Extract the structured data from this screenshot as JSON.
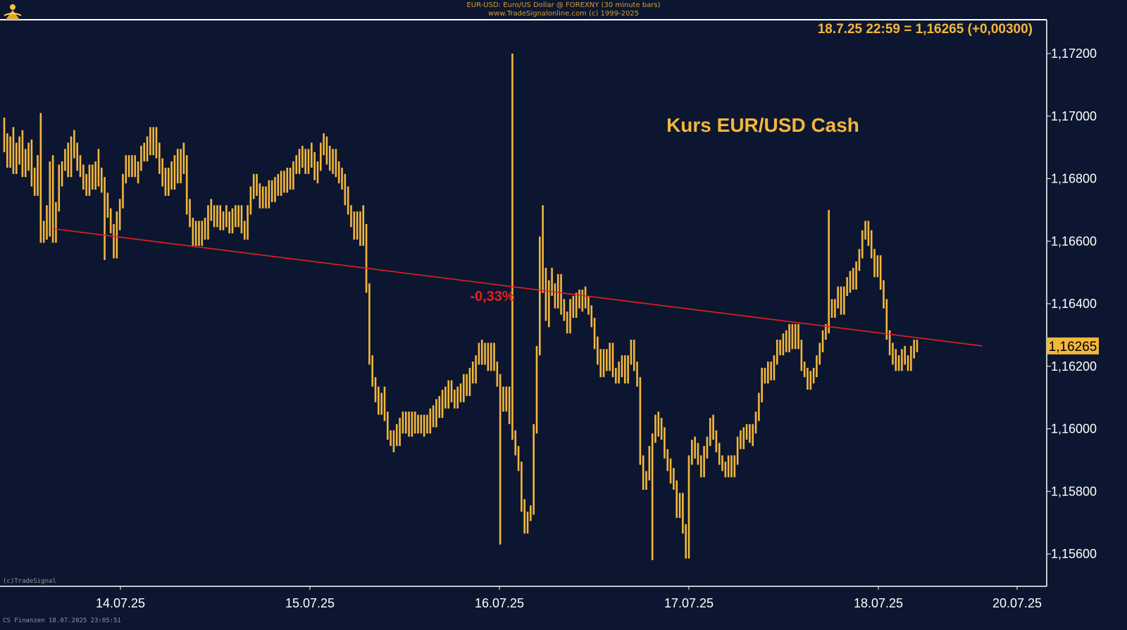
{
  "header": {
    "title": "EUR-USD: Euro/US Dollar @ FOREXNY (30 minute bars)",
    "subtitle": "www.TradeSignalonline.com (c) 1999-2025"
  },
  "footer": {
    "left_top": "(c)TradeSignal",
    "left_bottom": "CS Finanzen  18.07.2025 23:05:51"
  },
  "chart_data": {
    "type": "ohlc-bar",
    "title": "Kurs EUR/USD Cash",
    "last_quote": "18.7.25 22:59 = 1,16265 (+0,00300)",
    "current_price_label": "1,16265",
    "trendline_label": "-0,33%",
    "ylim": [
      1.155,
      1.173
    ],
    "yticks": [
      "1,17200",
      "1,17000",
      "1,16800",
      "1,16600",
      "1,16400",
      "1,16200",
      "1,16000",
      "1,15800",
      "1,15600"
    ],
    "ytick_values": [
      1.172,
      1.17,
      1.168,
      1.166,
      1.164,
      1.162,
      1.16,
      1.158,
      1.156
    ],
    "xticks": [
      "14.07.25",
      "15.07.25",
      "16.07.25",
      "17.07.25",
      "18.07.25",
      "20.07.25"
    ],
    "trendline": {
      "start": {
        "bar": 16,
        "price": 1.1664
      },
      "end": {
        "bar": 320,
        "price": 1.16265
      },
      "change": "-0,33%"
    },
    "colors": {
      "background": "#0d1630",
      "bars": "#f3b73a",
      "trendline": "#e52020",
      "axis": "#ffffff",
      "label_red": "#e52020"
    },
    "bars": [
      [
        1.1698,
        1.169
      ],
      [
        1.1693,
        1.1685
      ],
      [
        1.1688,
        1.1692
      ],
      [
        1.1695,
        1.1683
      ],
      [
        1.169,
        1.1686
      ],
      [
        1.1688,
        1.1692
      ],
      [
        1.1694,
        1.1682
      ],
      [
        1.1688,
        1.1684
      ],
      [
        1.1686,
        1.169
      ],
      [
        1.1691,
        1.1679
      ],
      [
        1.1682,
        1.1676
      ],
      [
        1.1678,
        1.1686
      ],
      [
        1.17,
        1.1661
      ],
      [
        1.1665,
        1.1662
      ],
      [
        1.167,
        1.1663
      ],
      [
        1.1665,
        1.1684
      ],
      [
        1.1686,
        1.1661
      ],
      [
        1.1664,
        1.1671
      ],
      [
        1.1675,
        1.1683
      ],
      [
        1.1679,
        1.1684
      ],
      [
        1.1684,
        1.1688
      ],
      [
        1.169,
        1.1682
      ],
      [
        1.1686,
        1.1692
      ],
      [
        1.1694,
        1.1688
      ],
      [
        1.169,
        1.1684
      ],
      [
        1.1686,
        1.1682
      ],
      [
        1.1683,
        1.1678
      ],
      [
        1.168,
        1.1676
      ],
      [
        1.1678,
        1.1683
      ],
      [
        1.1682,
        1.1678
      ],
      [
        1.168,
        1.1684
      ],
      [
        1.1688,
        1.1679
      ],
      [
        1.1682,
        1.1677
      ],
      [
        1.1679,
        1.1674
      ],
      [
        1.1672,
        1.1669
      ],
      [
        1.1668,
        1.1664
      ],
      [
        1.1662,
        1.1656
      ],
      [
        1.1658,
        1.1668
      ],
      [
        1.1665,
        1.1672
      ],
      [
        1.1675,
        1.168
      ],
      [
        1.1683,
        1.1686
      ],
      [
        1.1686,
        1.1682
      ],
      [
        1.1683,
        1.1686
      ],
      [
        1.1686,
        1.1682
      ],
      [
        1.168,
        1.1684
      ],
      [
        1.1686,
        1.1689
      ],
      [
        1.169,
        1.1687
      ],
      [
        1.1688,
        1.1692
      ],
      [
        1.1695,
        1.1689
      ],
      [
        1.169,
        1.1695
      ],
      [
        1.1694,
        1.1688
      ],
      [
        1.169,
        1.1683
      ],
      [
        1.1685,
        1.1679
      ],
      [
        1.1682,
        1.1676
      ],
      [
        1.1678,
        1.1682
      ],
      [
        1.1684,
        1.1678
      ],
      [
        1.1682,
        1.1686
      ],
      [
        1.1688,
        1.168
      ],
      [
        1.1684,
        1.1688
      ],
      [
        1.169,
        1.1683
      ],
      [
        1.1686,
        1.167
      ],
      [
        1.1672,
        1.1666
      ],
      [
        1.1666,
        1.166
      ],
      [
        1.1662,
        1.1665
      ],
      [
        1.1664,
        1.166
      ],
      [
        1.1661,
        1.1665
      ],
      [
        1.1666,
        1.1662
      ],
      [
        1.1664,
        1.167
      ],
      [
        1.1672,
        1.1668
      ],
      [
        1.167,
        1.1666
      ],
      [
        1.1667,
        1.167
      ],
      [
        1.1669,
        1.1665
      ],
      [
        1.1666,
        1.1668
      ],
      [
        1.167,
        1.1666
      ],
      [
        1.1668,
        1.1664
      ],
      [
        1.1665,
        1.1669
      ],
      [
        1.167,
        1.1666
      ],
      [
        1.1667,
        1.167
      ],
      [
        1.1668,
        1.1664
      ],
      [
        1.1665,
        1.1662
      ],
      [
        1.1665,
        1.167
      ],
      [
        1.1672,
        1.1676
      ],
      [
        1.1675,
        1.168
      ],
      [
        1.168,
        1.1676
      ],
      [
        1.1677,
        1.1672
      ],
      [
        1.1672,
        1.1676
      ],
      [
        1.1676,
        1.1672
      ],
      [
        1.1674,
        1.1678
      ],
      [
        1.1678,
        1.1674
      ],
      [
        1.1675,
        1.1679
      ],
      [
        1.168,
        1.1676
      ],
      [
        1.1677,
        1.1681
      ],
      [
        1.1681,
        1.1677
      ],
      [
        1.1678,
        1.1682
      ],
      [
        1.1682,
        1.1678
      ],
      [
        1.168,
        1.1684
      ],
      [
        1.1686,
        1.1683
      ],
      [
        1.1684,
        1.1688
      ],
      [
        1.1689,
        1.1685
      ],
      [
        1.1688,
        1.1683
      ],
      [
        1.1684,
        1.1688
      ],
      [
        1.169,
        1.1685
      ],
      [
        1.1687,
        1.1681
      ],
      [
        1.168,
        1.1684
      ],
      [
        1.1688,
        1.169
      ],
      [
        1.1693,
        1.1689
      ],
      [
        1.1692,
        1.1686
      ],
      [
        1.1689,
        1.1684
      ],
      [
        1.1688,
        1.1683
      ],
      [
        1.1688,
        1.1682
      ],
      [
        1.1684,
        1.168
      ],
      [
        1.1682,
        1.1678
      ],
      [
        1.168,
        1.1673
      ],
      [
        1.1676,
        1.167
      ],
      [
        1.167,
        1.1666
      ],
      [
        1.1668,
        1.1662
      ],
      [
        1.1664,
        1.1668
      ],
      [
        1.1664,
        1.166
      ],
      [
        1.167,
        1.1664
      ],
      [
        1.166,
        1.1645
      ],
      [
        1.1643,
        1.1622
      ],
      [
        1.1622,
        1.1615
      ],
      [
        1.1615,
        1.161
      ],
      [
        1.1612,
        1.1606
      ],
      [
        1.1606,
        1.161
      ],
      [
        1.1612,
        1.1604
      ],
      [
        1.1604,
        1.1598
      ],
      [
        1.1598,
        1.1596
      ],
      [
        1.1594,
        1.1598
      ],
      [
        1.16,
        1.1596
      ],
      [
        1.1598,
        1.1602
      ],
      [
        1.1604,
        1.16
      ],
      [
        1.16,
        1.1604
      ],
      [
        1.1602,
        1.1599
      ],
      [
        1.16,
        1.1604
      ],
      [
        1.1604,
        1.16
      ],
      [
        1.16,
        1.1603
      ],
      [
        1.1603,
        1.16
      ],
      [
        1.1599,
        1.1603
      ],
      [
        1.1603,
        1.16
      ],
      [
        1.1601,
        1.1605
      ],
      [
        1.1606,
        1.1602
      ],
      [
        1.1604,
        1.1608
      ],
      [
        1.1609,
        1.1605
      ],
      [
        1.1607,
        1.1611
      ],
      [
        1.1612,
        1.1608
      ],
      [
        1.161,
        1.1614
      ],
      [
        1.1614,
        1.161
      ],
      [
        1.1611,
        1.1608
      ],
      [
        1.1609,
        1.1612
      ],
      [
        1.1613,
        1.161
      ],
      [
        1.1611,
        1.1616
      ],
      [
        1.1616,
        1.1612
      ],
      [
        1.1614,
        1.1618
      ],
      [
        1.162,
        1.1616
      ],
      [
        1.1618,
        1.1622
      ],
      [
        1.1622,
        1.1626
      ],
      [
        1.1627,
        1.1622
      ],
      [
        1.1623,
        1.1626
      ],
      [
        1.1626,
        1.162
      ],
      [
        1.1622,
        1.1626
      ],
      [
        1.1625,
        1.162
      ],
      [
        1.162,
        1.1615
      ],
      [
        1.1616,
        1.1612
      ],
      [
        1.1612,
        1.1607
      ],
      [
        1.1608,
        1.1612
      ],
      [
        1.161,
        1.1603
      ],
      [
        1.1604,
        1.1598
      ],
      [
        1.1596,
        1.1593
      ],
      [
        1.1592,
        1.1588
      ],
      [
        1.1585,
        1.1575
      ],
      [
        1.1576,
        1.1568
      ],
      [
        1.1568,
        1.1572
      ],
      [
        1.1572,
        1.1574
      ],
      [
        1.158,
        1.16
      ],
      [
        1.161,
        1.1625
      ],
      [
        1.164,
        1.166
      ],
      [
        1.167,
        1.1645
      ],
      [
        1.165,
        1.1636
      ],
      [
        1.1634,
        1.1646
      ],
      [
        1.165,
        1.1644
      ],
      [
        1.1645,
        1.164
      ],
      [
        1.1642,
        1.1648
      ],
      [
        1.1644,
        1.1638
      ],
      [
        1.164,
        1.1636
      ],
      [
        1.1636,
        1.1632
      ],
      [
        1.1634,
        1.164
      ],
      [
        1.1641,
        1.1637
      ],
      [
        1.1638,
        1.1642
      ],
      [
        1.1643,
        1.164
      ],
      [
        1.1639,
        1.1643
      ],
      [
        1.1644,
        1.164
      ],
      [
        1.1641,
        1.1638
      ],
      [
        1.1638,
        1.1634
      ],
      [
        1.1634,
        1.1627
      ],
      [
        1.1628,
        1.1622
      ],
      [
        1.1624,
        1.1618
      ],
      [
        1.1618,
        1.1624
      ],
      [
        1.1624,
        1.162
      ],
      [
        1.162,
        1.1626
      ],
      [
        1.1626,
        1.1618
      ],
      [
        1.1617,
        1.1616
      ],
      [
        1.1618,
        1.162
      ],
      [
        1.1618,
        1.1622
      ],
      [
        1.1622,
        1.1616
      ],
      [
        1.162,
        1.1622
      ],
      [
        1.1624,
        1.1627
      ],
      [
        1.1627,
        1.162
      ],
      [
        1.162,
        1.1615
      ],
      [
        1.1614,
        1.159
      ],
      [
        1.1588,
        1.1582
      ],
      [
        1.1582,
        1.1585
      ],
      [
        1.1588,
        1.1593
      ],
      [
        1.1592,
        1.1597
      ],
      [
        1.1599,
        1.1603
      ],
      [
        1.1604,
        1.1599
      ],
      [
        1.1602,
        1.1598
      ],
      [
        1.1599,
        1.1592
      ],
      [
        1.159,
        1.1588
      ],
      [
        1.1589,
        1.1584
      ],
      [
        1.1586,
        1.1582
      ],
      [
        1.158,
        1.1573
      ],
      [
        1.1574,
        1.1578
      ],
      [
        1.1574,
        1.1568
      ],
      [
        1.1566,
        1.156
      ],
      [
        1.158,
        1.159
      ],
      [
        1.159,
        1.1595
      ],
      [
        1.1596,
        1.1592
      ],
      [
        1.1594,
        1.159
      ],
      [
        1.159,
        1.1586
      ],
      [
        1.1587,
        1.1593
      ],
      [
        1.1592,
        1.1596
      ],
      [
        1.1598,
        1.1602
      ],
      [
        1.1603,
        1.1598
      ],
      [
        1.1598,
        1.1594
      ],
      [
        1.1594,
        1.159
      ],
      [
        1.159,
        1.1588
      ],
      [
        1.1588,
        1.1586
      ],
      [
        1.1586,
        1.159
      ],
      [
        1.159,
        1.1586
      ],
      [
        1.1586,
        1.159
      ],
      [
        1.1592,
        1.1596
      ],
      [
        1.1598,
        1.1595
      ],
      [
        1.1596,
        1.1599
      ],
      [
        1.1598,
        1.16
      ],
      [
        1.1599,
        1.1597
      ],
      [
        1.1596,
        1.16
      ],
      [
        1.16,
        1.1604
      ],
      [
        1.1604,
        1.161
      ],
      [
        1.161,
        1.1618
      ],
      [
        1.1618,
        1.1616
      ],
      [
        1.1616,
        1.162
      ],
      [
        1.162,
        1.1617
      ],
      [
        1.1618,
        1.1622
      ],
      [
        1.1622,
        1.1627
      ],
      [
        1.1627,
        1.1625
      ],
      [
        1.1625,
        1.1629
      ],
      [
        1.163,
        1.1626
      ],
      [
        1.1628,
        1.1632
      ],
      [
        1.1632,
        1.1627
      ],
      [
        1.1628,
        1.1632
      ],
      [
        1.163,
        1.1627
      ],
      [
        1.1624,
        1.162
      ],
      [
        1.162,
        1.1618
      ],
      [
        1.1618,
        1.1614
      ],
      [
        1.1614,
        1.1617
      ],
      [
        1.1616,
        1.1618
      ],
      [
        1.1618,
        1.1622
      ],
      [
        1.1622,
        1.1626
      ],
      [
        1.1626,
        1.163
      ],
      [
        1.163,
        1.1632
      ],
      [
        1.1634,
        1.164
      ],
      [
        1.164,
        1.1637
      ],
      [
        1.1637,
        1.164
      ],
      [
        1.164,
        1.1644
      ],
      [
        1.1642,
        1.1638
      ],
      [
        1.164,
        1.1644
      ],
      [
        1.1644,
        1.1647
      ],
      [
        1.1645,
        1.1649
      ],
      [
        1.165,
        1.1646
      ],
      [
        1.1648,
        1.1652
      ],
      [
        1.1652,
        1.1656
      ],
      [
        1.1658,
        1.1662
      ],
      [
        1.1662,
        1.1665
      ],
      [
        1.1664,
        1.166
      ],
      [
        1.1662,
        1.1656
      ],
      [
        1.1655,
        1.165
      ],
      [
        1.1652,
        1.1654
      ],
      [
        1.1654,
        1.1646
      ],
      [
        1.1646,
        1.164
      ],
      [
        1.1637,
        1.163
      ],
      [
        1.163,
        1.1625
      ],
      [
        1.1626,
        1.1622
      ],
      [
        1.1624,
        1.162
      ],
      [
        1.1622,
        1.162
      ],
      [
        1.162,
        1.1624
      ],
      [
        1.1625,
        1.1622
      ],
      [
        1.1622,
        1.162
      ],
      [
        1.1622,
        1.1625
      ],
      [
        1.1624,
        1.1627
      ],
      [
        1.1627,
        1.1626
      ]
    ],
    "extremes": [
      {
        "bar": 12,
        "high": 1.1701
      },
      {
        "bar": 33,
        "low": 1.1654
      },
      {
        "bar": 163,
        "low": 1.1563
      },
      {
        "bar": 167,
        "high": 1.172
      },
      {
        "bar": 213,
        "low": 1.1558
      },
      {
        "bar": 271,
        "high": 1.167
      }
    ]
  }
}
